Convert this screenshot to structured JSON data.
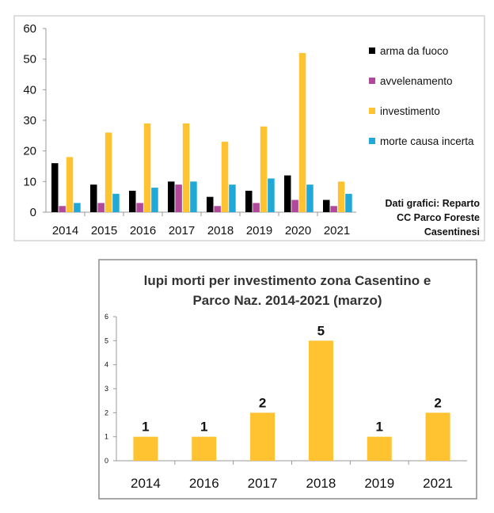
{
  "chart_data": [
    {
      "type": "bar",
      "categories": [
        "2014",
        "2015",
        "2016",
        "2017",
        "2018",
        "2019",
        "2020",
        "2021"
      ],
      "series": [
        {
          "name": "arma da fuoco",
          "color": "#000000",
          "values": [
            16,
            9,
            7,
            10,
            5,
            7,
            12,
            4
          ]
        },
        {
          "name": "avvelenamento",
          "color": "#b1489b",
          "values": [
            2,
            3,
            3,
            9,
            2,
            3,
            4,
            2
          ]
        },
        {
          "name": "investimento",
          "color": "#ffc230",
          "values": [
            18,
            26,
            29,
            29,
            23,
            28,
            52,
            10
          ]
        },
        {
          "name": "morte causa incerta",
          "color": "#1fa8d8",
          "values": [
            3,
            6,
            8,
            10,
            9,
            11,
            9,
            6
          ]
        }
      ],
      "yticks": [
        "0",
        "10",
        "20",
        "30",
        "40",
        "50",
        "60"
      ],
      "ylim": [
        0,
        60
      ],
      "grid": false,
      "legend": "right",
      "note": [
        "Dati grafici: Reparto",
        "CC Parco Foreste",
        "Casentinesi"
      ]
    },
    {
      "type": "bar",
      "title": [
        "lupi morti per investimento zona Casentino e",
        "Parco Naz. 2014-2021 (marzo)"
      ],
      "categories": [
        "2014",
        "2016",
        "2017",
        "2018",
        "2019",
        "2021"
      ],
      "values": [
        1,
        1,
        2,
        5,
        1,
        2
      ],
      "data_labels": [
        "1",
        "1",
        "2",
        "5",
        "1",
        "2"
      ],
      "yticks": [
        "0",
        "1",
        "2",
        "3",
        "4",
        "5",
        "6"
      ],
      "ylim": [
        0,
        6
      ],
      "color": "#ffc230",
      "grid": false
    }
  ]
}
